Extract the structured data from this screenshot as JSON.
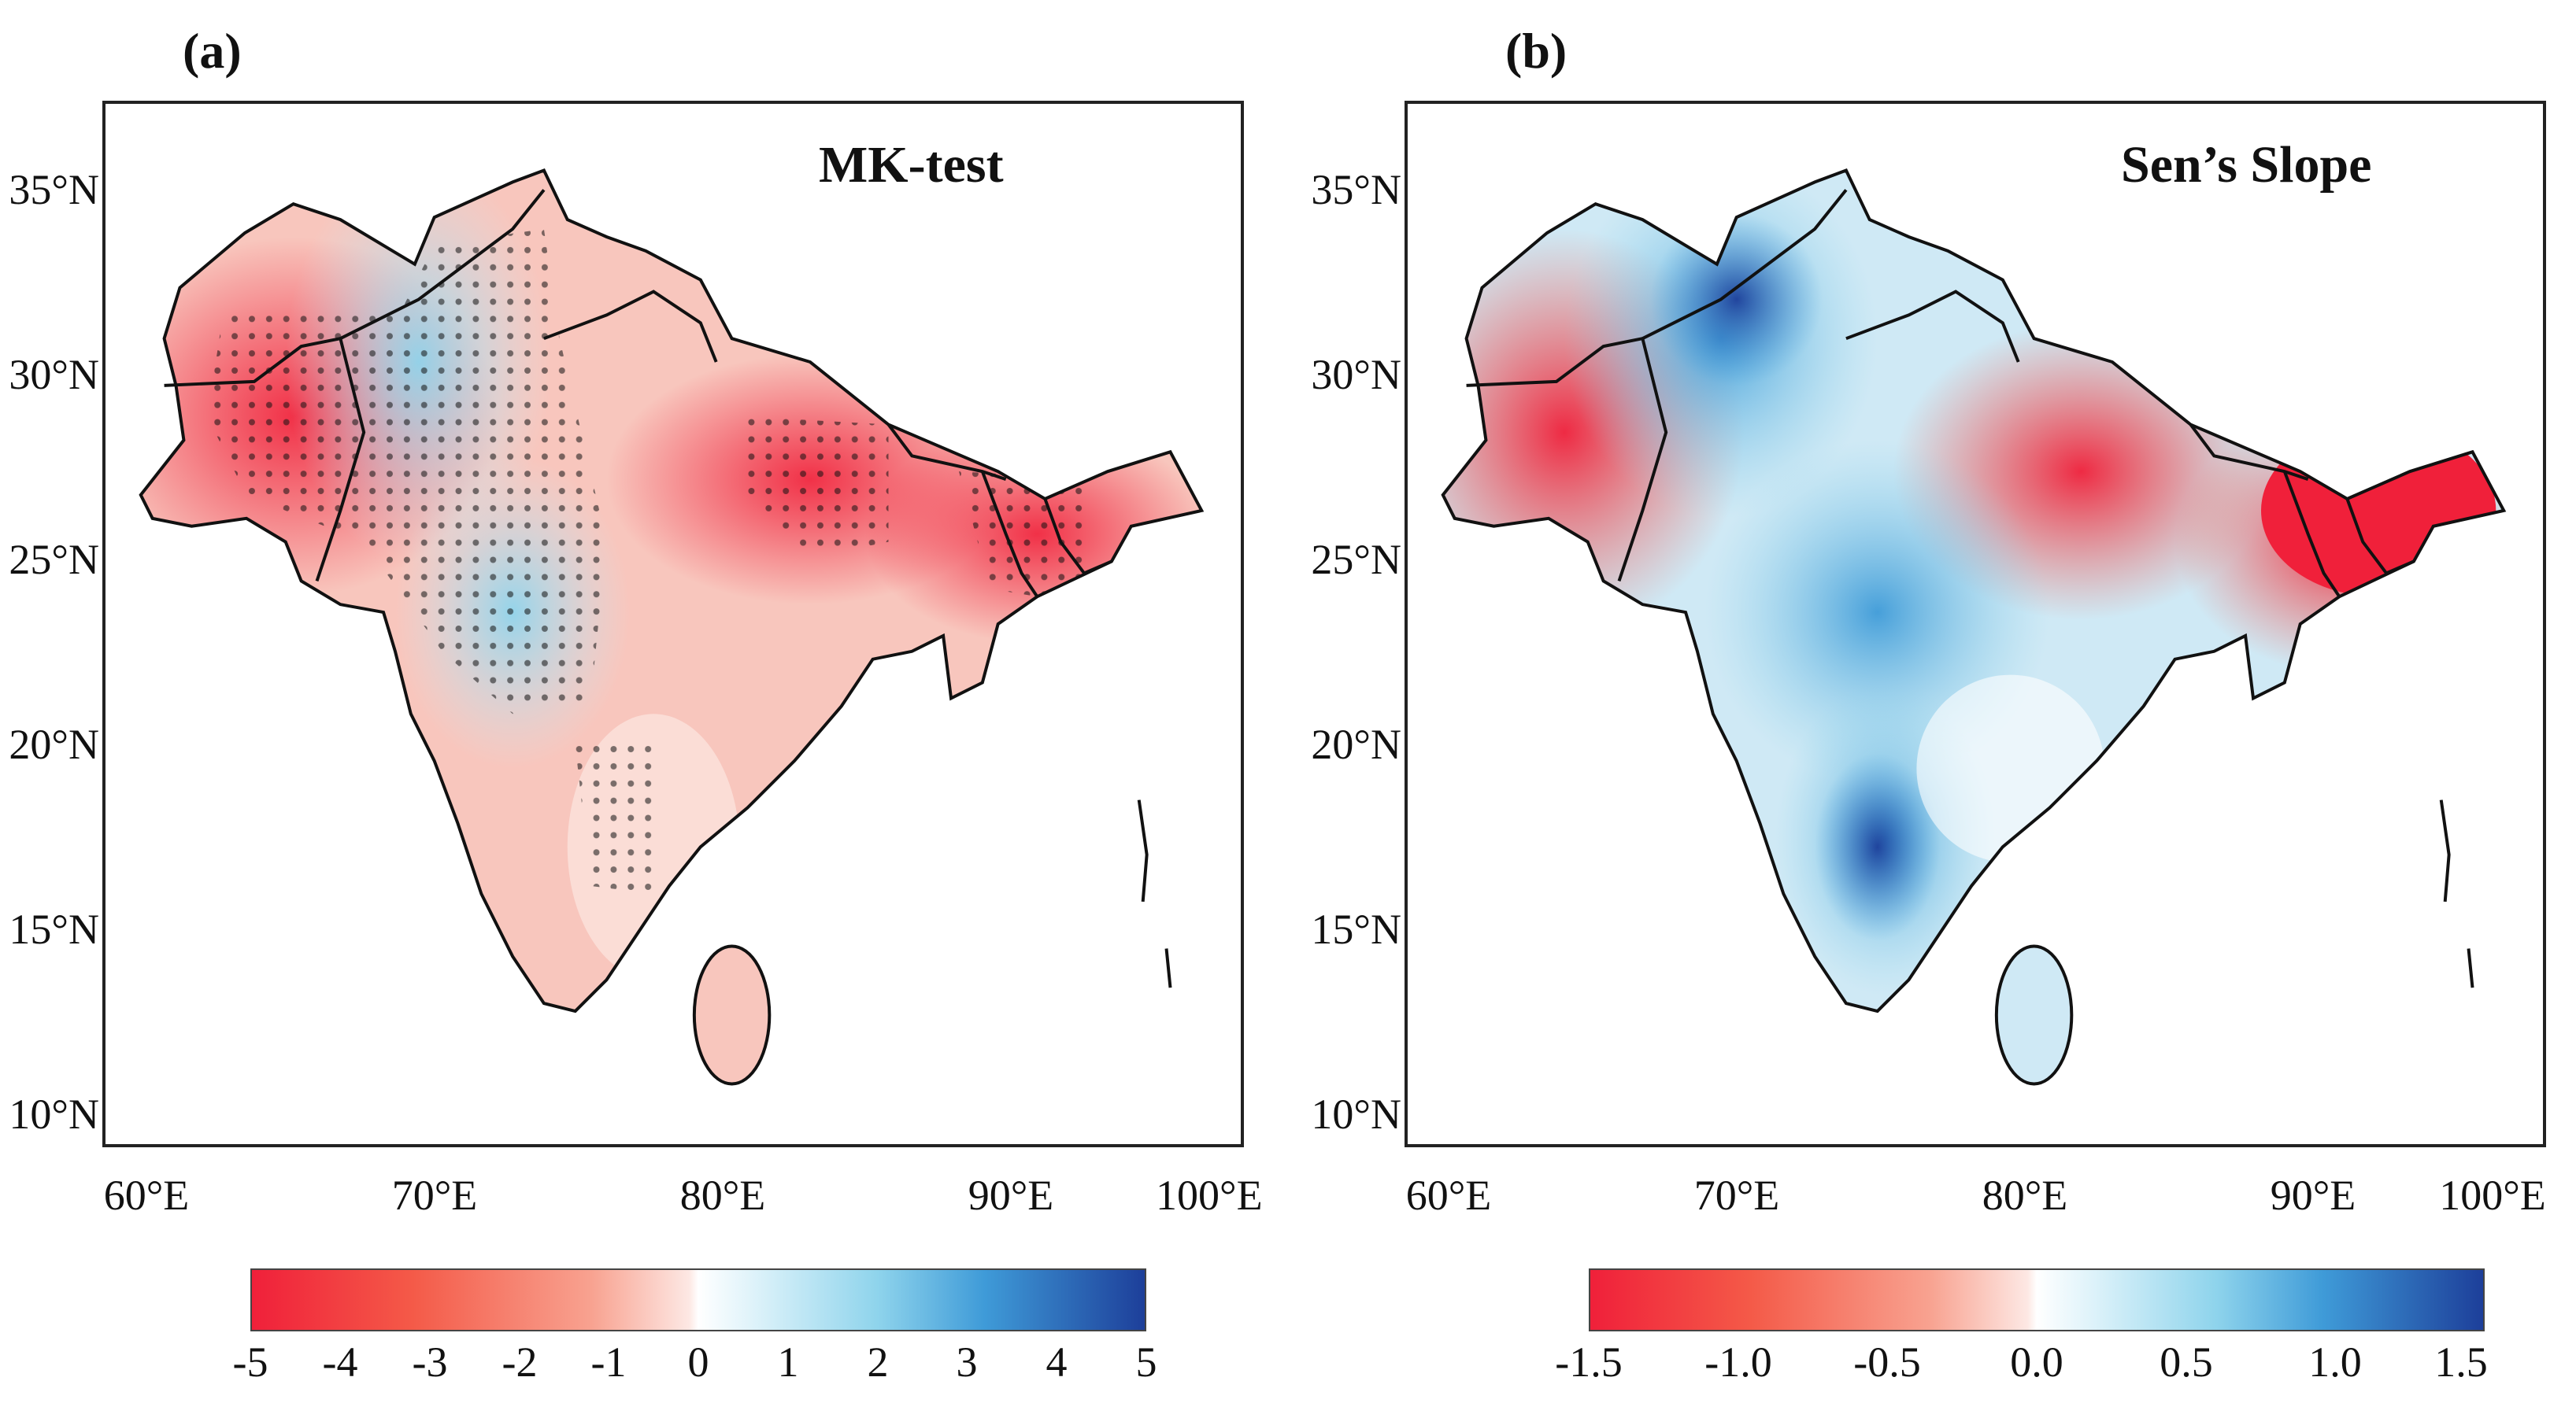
{
  "panels": [
    {
      "letter": "(a)",
      "title": "MK-test",
      "lat_ticks": [
        "35°N",
        "30°N",
        "25°N",
        "20°N",
        "15°N",
        "10°N"
      ],
      "lon_ticks": [
        "60°E",
        "70°E",
        "80°E",
        "90°E",
        "100°E"
      ],
      "colorbar_ticks": [
        "-5",
        "-4",
        "-3",
        "-2",
        "-1",
        "0",
        "1",
        "2",
        "3",
        "4",
        "5"
      ]
    },
    {
      "letter": "(b)",
      "title": "Sen’s Slope",
      "lat_ticks": [
        "35°N",
        "30°N",
        "25°N",
        "20°N",
        "15°N",
        "10°N"
      ],
      "lon_ticks": [
        "60°E",
        "70°E",
        "80°E",
        "90°E",
        "100°E"
      ],
      "colorbar_ticks": [
        "-1.5",
        "-1.0",
        "-0.5",
        "0.0",
        "0.5",
        "1.0",
        "1.5"
      ]
    }
  ],
  "colors": {
    "negative_strong": "#f0203a",
    "negative_light": "#f8a290",
    "neutral": "#ffffff",
    "positive_light": "#8fd4ec",
    "positive_strong": "#1d3f9a"
  }
}
